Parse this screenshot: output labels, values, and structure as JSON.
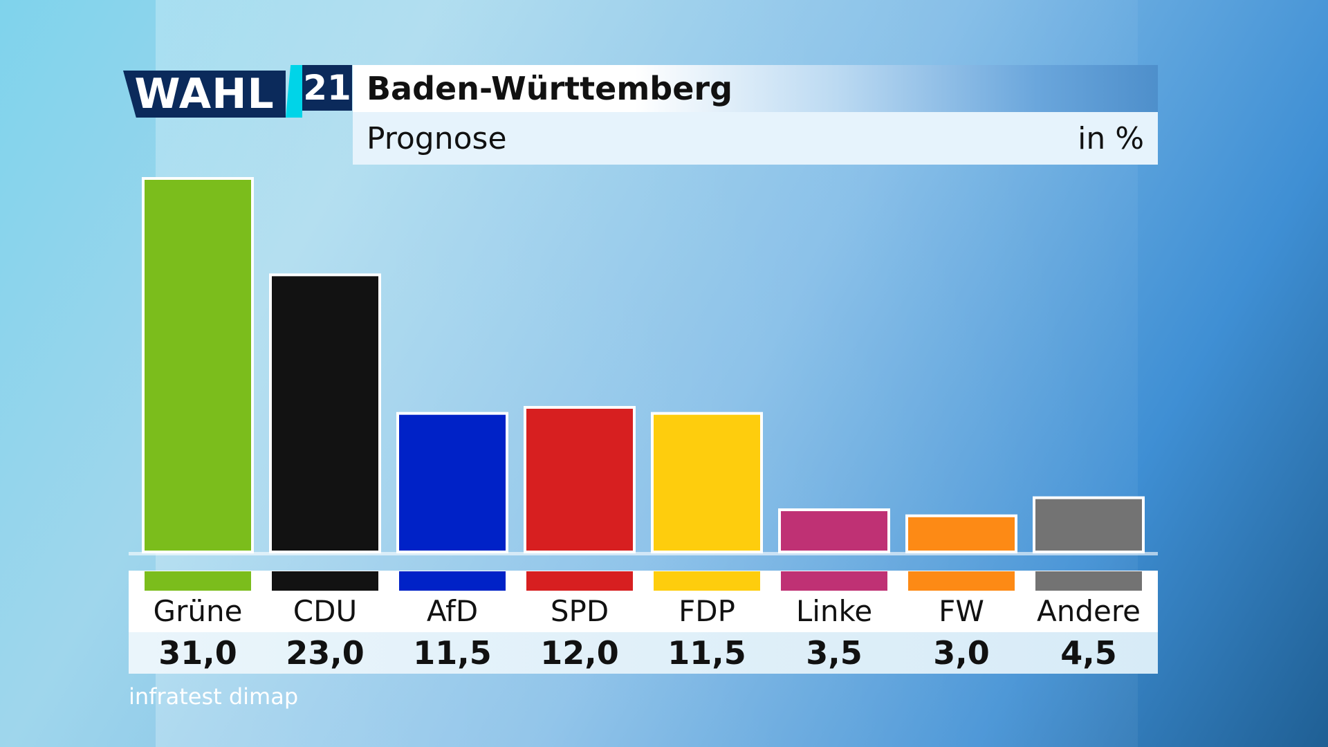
{
  "header": {
    "logo_word": "WAHL",
    "logo_year": "21",
    "title": "Baden-Württemberg",
    "subtitle": "Prognose",
    "unit": "in %"
  },
  "source": "infratest dimap",
  "chart_data": {
    "type": "bar",
    "title": "Baden-Württemberg",
    "subtitle": "Prognose",
    "ylabel": "in %",
    "ylim": [
      0,
      31
    ],
    "grid": false,
    "categories": [
      "Grüne",
      "CDU",
      "AfD",
      "SPD",
      "FDP",
      "Linke",
      "FW",
      "Andere"
    ],
    "values": [
      31.0,
      23.0,
      11.5,
      12.0,
      11.5,
      3.5,
      3.0,
      4.5
    ],
    "value_labels": [
      "31,0",
      "23,0",
      "11,5",
      "12,0",
      "11,5",
      "3,5",
      "3,0",
      "4,5"
    ],
    "colors": [
      "#7bbd1c",
      "#121212",
      "#0022c7",
      "#d71f20",
      "#fecd0d",
      "#bf3174",
      "#fd8a15",
      "#737373"
    ]
  }
}
